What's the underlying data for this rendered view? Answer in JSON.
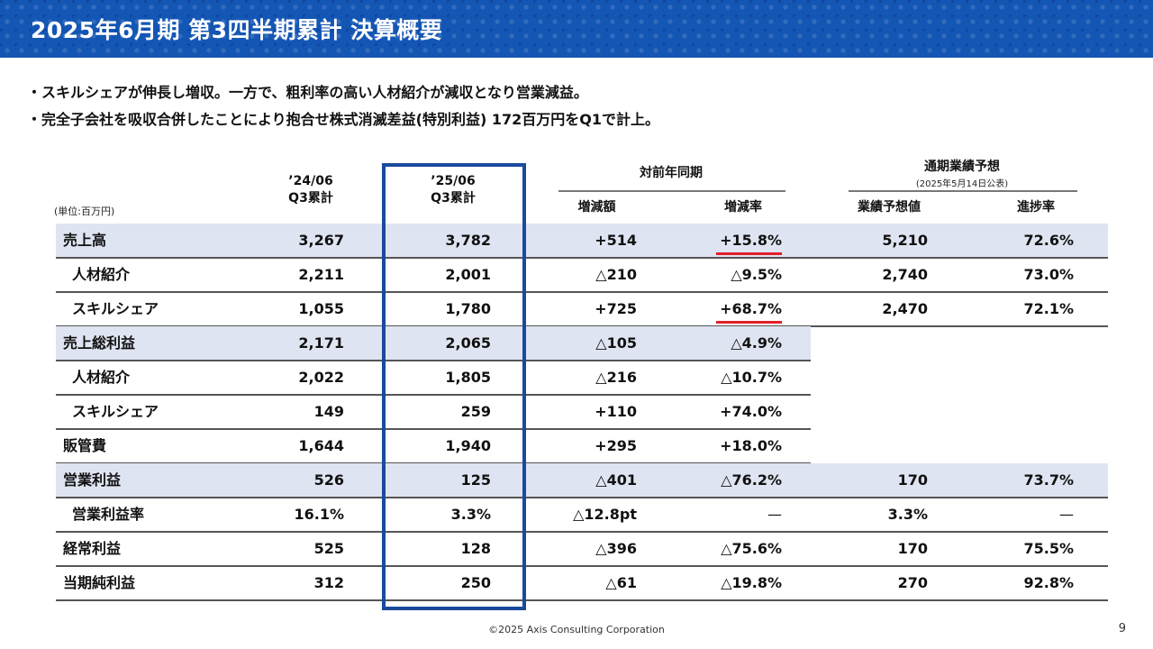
{
  "title": "2025年6月期 第3四半期累計 決算概要",
  "bullets": [
    "スキルシェアが伸長し増収。一方で、粗利率の高い人材紹介が減収となり営業減益。",
    "完全子会社を吸収合併したことにより抱合せ株式消滅差益(特別利益) 172百万円をQ1で計上。"
  ],
  "bullet_mark": "・",
  "unit_note": "(単位:百万円)",
  "columns": {
    "prev_year": "’24/06",
    "prev_q": "Q3累計",
    "curr_year": "’25/06",
    "curr_q": "Q3累計",
    "yoy_group": "対前年同期",
    "yoy_amount": "増減額",
    "yoy_rate": "増減率",
    "forecast_group": "通期業績予想",
    "forecast_note": "(2025年5月14日公表)",
    "forecast_value": "業績予想値",
    "progress": "進捗率"
  },
  "rows": [
    {
      "label": "売上高",
      "indent": false,
      "shaded": true,
      "prev": "3,267",
      "curr": "3,782",
      "diff": "+514",
      "rate": "+15.8%",
      "forecast": "5,210",
      "progress": "72.6%"
    },
    {
      "label": "人材紹介",
      "indent": true,
      "shaded": false,
      "prev": "2,211",
      "curr": "2,001",
      "diff": "△210",
      "rate": "△9.5%",
      "forecast": "2,740",
      "progress": "73.0%"
    },
    {
      "label": "スキルシェア",
      "indent": true,
      "shaded": false,
      "prev": "1,055",
      "curr": "1,780",
      "diff": "+725",
      "rate": "+68.7%",
      "forecast": "2,470",
      "progress": "72.1%"
    },
    {
      "label": "売上総利益",
      "indent": false,
      "shaded": true,
      "prev": "2,171",
      "curr": "2,065",
      "diff": "△105",
      "rate": "△4.9%",
      "forecast": "",
      "progress": ""
    },
    {
      "label": "人材紹介",
      "indent": true,
      "shaded": false,
      "prev": "2,022",
      "curr": "1,805",
      "diff": "△216",
      "rate": "△10.7%",
      "forecast": "",
      "progress": ""
    },
    {
      "label": "スキルシェア",
      "indent": true,
      "shaded": false,
      "prev": "149",
      "curr": "259",
      "diff": "+110",
      "rate": "+74.0%",
      "forecast": "",
      "progress": ""
    },
    {
      "label": "販管費",
      "indent": false,
      "shaded": false,
      "prev": "1,644",
      "curr": "1,940",
      "diff": "+295",
      "rate": "+18.0%",
      "forecast": "",
      "progress": ""
    },
    {
      "label": "営業利益",
      "indent": false,
      "shaded": true,
      "prev": "526",
      "curr": "125",
      "diff": "△401",
      "rate": "△76.2%",
      "forecast": "170",
      "progress": "73.7%"
    },
    {
      "label": "営業利益率",
      "indent": true,
      "shaded": false,
      "prev": "16.1%",
      "curr": "3.3%",
      "diff": "△12.8pt",
      "rate": "—",
      "forecast": "3.3%",
      "progress": "—"
    },
    {
      "label": "経常利益",
      "indent": false,
      "shaded": false,
      "prev": "525",
      "curr": "128",
      "diff": "△396",
      "rate": "△75.6%",
      "forecast": "170",
      "progress": "75.5%"
    },
    {
      "label": "当期純利益",
      "indent": false,
      "shaded": false,
      "prev": "312",
      "curr": "250",
      "diff": "△61",
      "rate": "△19.8%",
      "forecast": "270",
      "progress": "92.8%"
    }
  ],
  "colors": {
    "header_blue": "#1456b4",
    "row_shade": "#dfe4f2",
    "highlight_box": "#1a4a9c",
    "underline_red": "#e0202a"
  },
  "footer": "©2025 Axis Consulting Corporation",
  "page_number": "9"
}
